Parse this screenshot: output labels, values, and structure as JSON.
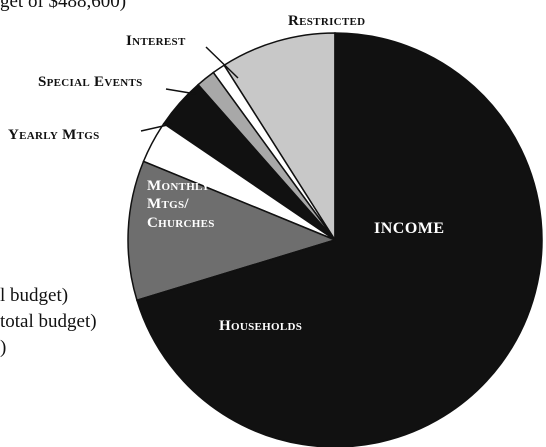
{
  "fragments": {
    "top": "get of $488,600)",
    "line1": "l budget)",
    "line2": "total budget)",
    "line3": ")"
  },
  "chart_data": {
    "type": "pie",
    "title": "INCOME",
    "slices": [
      {
        "label": "Restricted",
        "value": 9.0,
        "color": "#c8c8c8"
      },
      {
        "label": "Interest",
        "value": 1.0,
        "color": "#ffffff"
      },
      {
        "label": "Interest",
        "value": 1.5,
        "color": "#a8a8a8"
      },
      {
        "label": "Special Events",
        "value": 4.0,
        "color": "#111111"
      },
      {
        "label": "Yearly Mtgs",
        "value": 3.3,
        "color": "#ffffff"
      },
      {
        "label": "Monthly Mtgs/ Churches",
        "value": 10.9,
        "color": "#6e6e6e"
      },
      {
        "label": "Households",
        "value": 70.3,
        "color": "#111111"
      }
    ],
    "labels": {
      "restricted": "Restricted",
      "interest": "Interest",
      "special_events": "Special Events",
      "yearly_mtgs": "Yearly Mtgs",
      "monthly_line1": "Monthly",
      "monthly_line2": "Mtgs/",
      "monthly_line3": "Churches",
      "households": "Households",
      "income": "INCOME"
    }
  }
}
